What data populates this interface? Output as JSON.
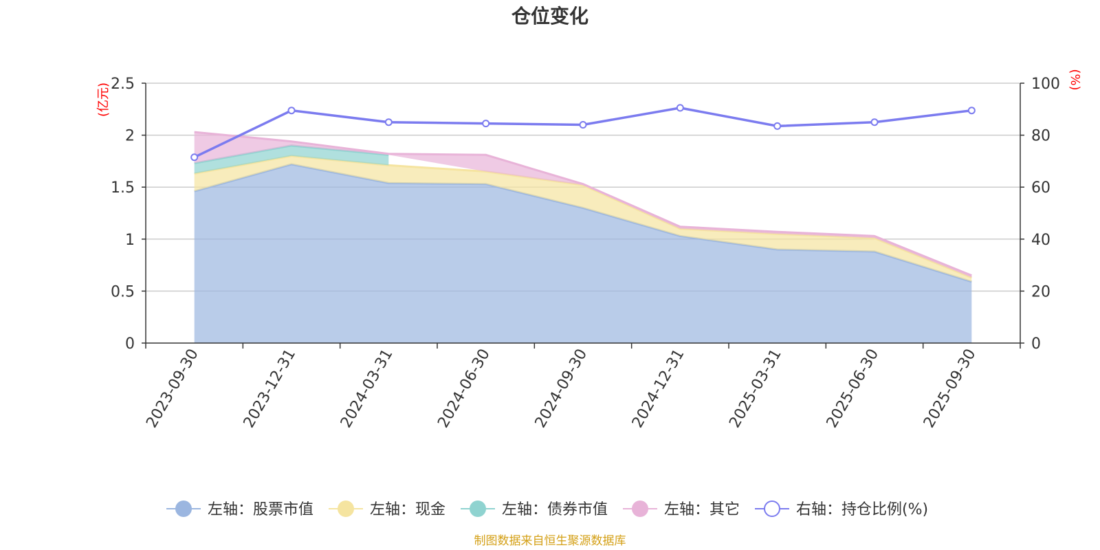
{
  "chart_data": {
    "type": "area",
    "title": "仓位变化",
    "categories": [
      "2023-09-30",
      "2023-12-31",
      "2024-03-31",
      "2024-06-30",
      "2024-09-30",
      "2024-12-31",
      "2025-03-31",
      "2025-06-30",
      "2025-09-30"
    ],
    "left_axis": {
      "unit": "(亿元)",
      "ylim": [
        0,
        2.5
      ],
      "ticks": [
        "0",
        "0.5",
        "1",
        "1.5",
        "2",
        "2.5"
      ]
    },
    "right_axis": {
      "unit": "(%)",
      "ylim": [
        0,
        100
      ],
      "ticks": [
        "0",
        "20",
        "40",
        "60",
        "80",
        "100"
      ]
    },
    "series": [
      {
        "name": "左轴：股票市值",
        "axis": "left",
        "kind": "stacked-area",
        "color": "#9bb6e0",
        "values": [
          1.46,
          1.72,
          1.54,
          1.53,
          1.3,
          1.03,
          0.9,
          0.88,
          0.59
        ]
      },
      {
        "name": "左轴：现金",
        "axis": "left",
        "kind": "stacked-area",
        "color": "#f5e4a0",
        "values": [
          0.17,
          0.08,
          0.17,
          0.12,
          0.22,
          0.07,
          0.15,
          0.13,
          0.04
        ]
      },
      {
        "name": "左轴：债券市值",
        "axis": "left",
        "kind": "stacked-area",
        "color": "#8fd3d0",
        "values": [
          0.1,
          0.1,
          0.1,
          null,
          null,
          null,
          null,
          null,
          null
        ]
      },
      {
        "name": "左轴：其它",
        "axis": "left",
        "kind": "stacked-area",
        "color": "#e8b3d8",
        "values": [
          0.3,
          0.04,
          0.01,
          0.16,
          0.01,
          0.02,
          0.02,
          0.02,
          0.02
        ]
      },
      {
        "name": "右轴：持仓比例(%)",
        "axis": "right",
        "kind": "line",
        "color": "#7b7bef",
        "values": [
          71.5,
          89.5,
          85.0,
          84.5,
          84.0,
          90.5,
          83.5,
          85.0,
          89.5
        ]
      }
    ],
    "legend_position": "bottom",
    "grid": true
  },
  "source_text": "制图数据来自恒生聚源数据库"
}
